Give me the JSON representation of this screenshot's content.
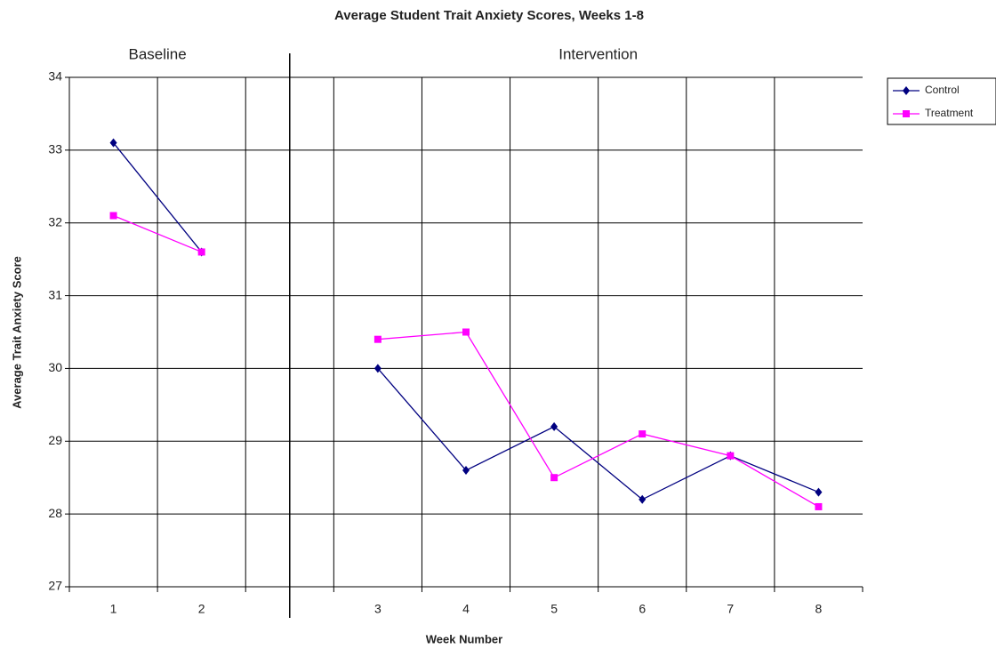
{
  "chart_data": {
    "type": "line",
    "title": "Average Student Trait Anxiety Scores, Weeks 1-8",
    "x_label": "Week Number",
    "y_label": "Average Trait Anxiety Score",
    "phase_labels": [
      "Baseline",
      "Intervention"
    ],
    "categories": [
      "1",
      "2",
      null,
      "3",
      "4",
      "5",
      "6",
      "7",
      "8"
    ],
    "series": [
      {
        "name": "Control",
        "color": "#000080",
        "marker": "diamond",
        "values": [
          33.1,
          31.6,
          null,
          30.0,
          28.6,
          29.2,
          28.2,
          28.8,
          28.3
        ]
      },
      {
        "name": "Treatment",
        "color": "#ff00ff",
        "marker": "square",
        "values": [
          32.1,
          31.6,
          null,
          30.4,
          30.5,
          28.5,
          29.1,
          28.8,
          28.1
        ]
      }
    ],
    "ylim": [
      27,
      34
    ],
    "yticks": [
      27,
      28,
      29,
      30,
      31,
      32,
      33,
      34
    ],
    "grid": true,
    "legend": "top-right"
  }
}
